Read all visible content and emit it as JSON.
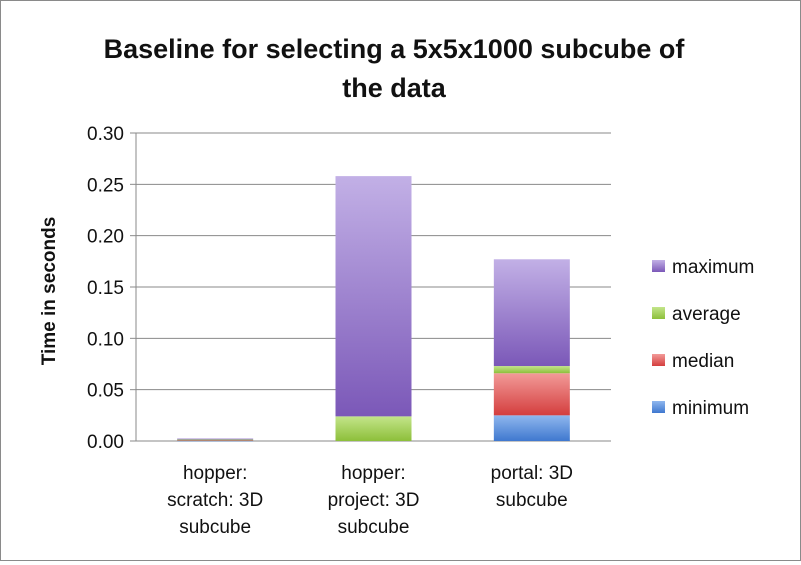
{
  "chart_data": {
    "type": "bar",
    "stacked": true,
    "title_lines": [
      "Baseline for selecting a 5x5x1000 subcube of",
      "the data"
    ],
    "xlabel": "",
    "ylabel": "Time in seconds",
    "ylim": [
      0,
      0.3
    ],
    "yticks": [
      "0.00",
      "0.05",
      "0.10",
      "0.15",
      "0.20",
      "0.25",
      "0.30"
    ],
    "ytick_values": [
      0,
      0.05,
      0.1,
      0.15,
      0.2,
      0.25,
      0.3
    ],
    "grid": true,
    "legend_position": "right",
    "categories": [
      [
        "hopper:",
        "scratch: 3D",
        "subcube"
      ],
      [
        "hopper:",
        "project: 3D",
        "subcube"
      ],
      [
        "portal: 3D",
        "subcube"
      ]
    ],
    "series": [
      {
        "name": "minimum",
        "color": "#4f86d8",
        "values": [
          0.0005,
          0.0,
          0.025
        ]
      },
      {
        "name": "median",
        "color": "#dd4f4f",
        "values": [
          0.0005,
          0.0,
          0.041
        ]
      },
      {
        "name": "average",
        "color": "#9bcb47",
        "values": [
          0.0005,
          0.024,
          0.007
        ]
      },
      {
        "name": "maximum",
        "color": "#8a6bc4",
        "values": [
          0.001,
          0.234,
          0.104
        ]
      }
    ]
  }
}
